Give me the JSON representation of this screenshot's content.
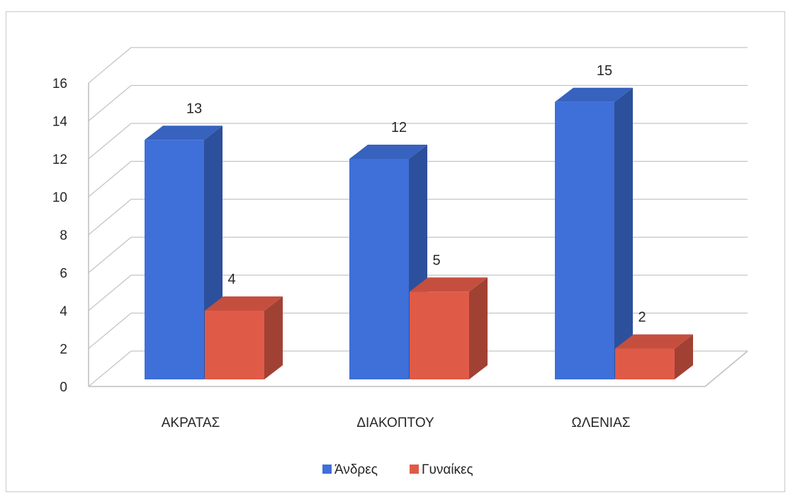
{
  "chart_data": {
    "type": "bar",
    "variant": "3d-clustered-column",
    "categories": [
      "ΑΚΡΑΤΑΣ",
      "ΔΙΑΚΟΠΤΟΥ",
      "ΩΛΕΝΙΑΣ"
    ],
    "series": [
      {
        "name": "Άνδρες",
        "values": [
          13,
          12,
          15
        ],
        "color": "#3f6fd8"
      },
      {
        "name": "Γυναίκες",
        "values": [
          4,
          5,
          2
        ],
        "color": "#e05a48"
      }
    ],
    "ylim": [
      0,
      16
    ],
    "yticks": [
      0,
      2,
      4,
      6,
      8,
      10,
      12,
      14,
      16
    ],
    "grid": true,
    "legend_position": "bottom",
    "data_labels": true
  }
}
